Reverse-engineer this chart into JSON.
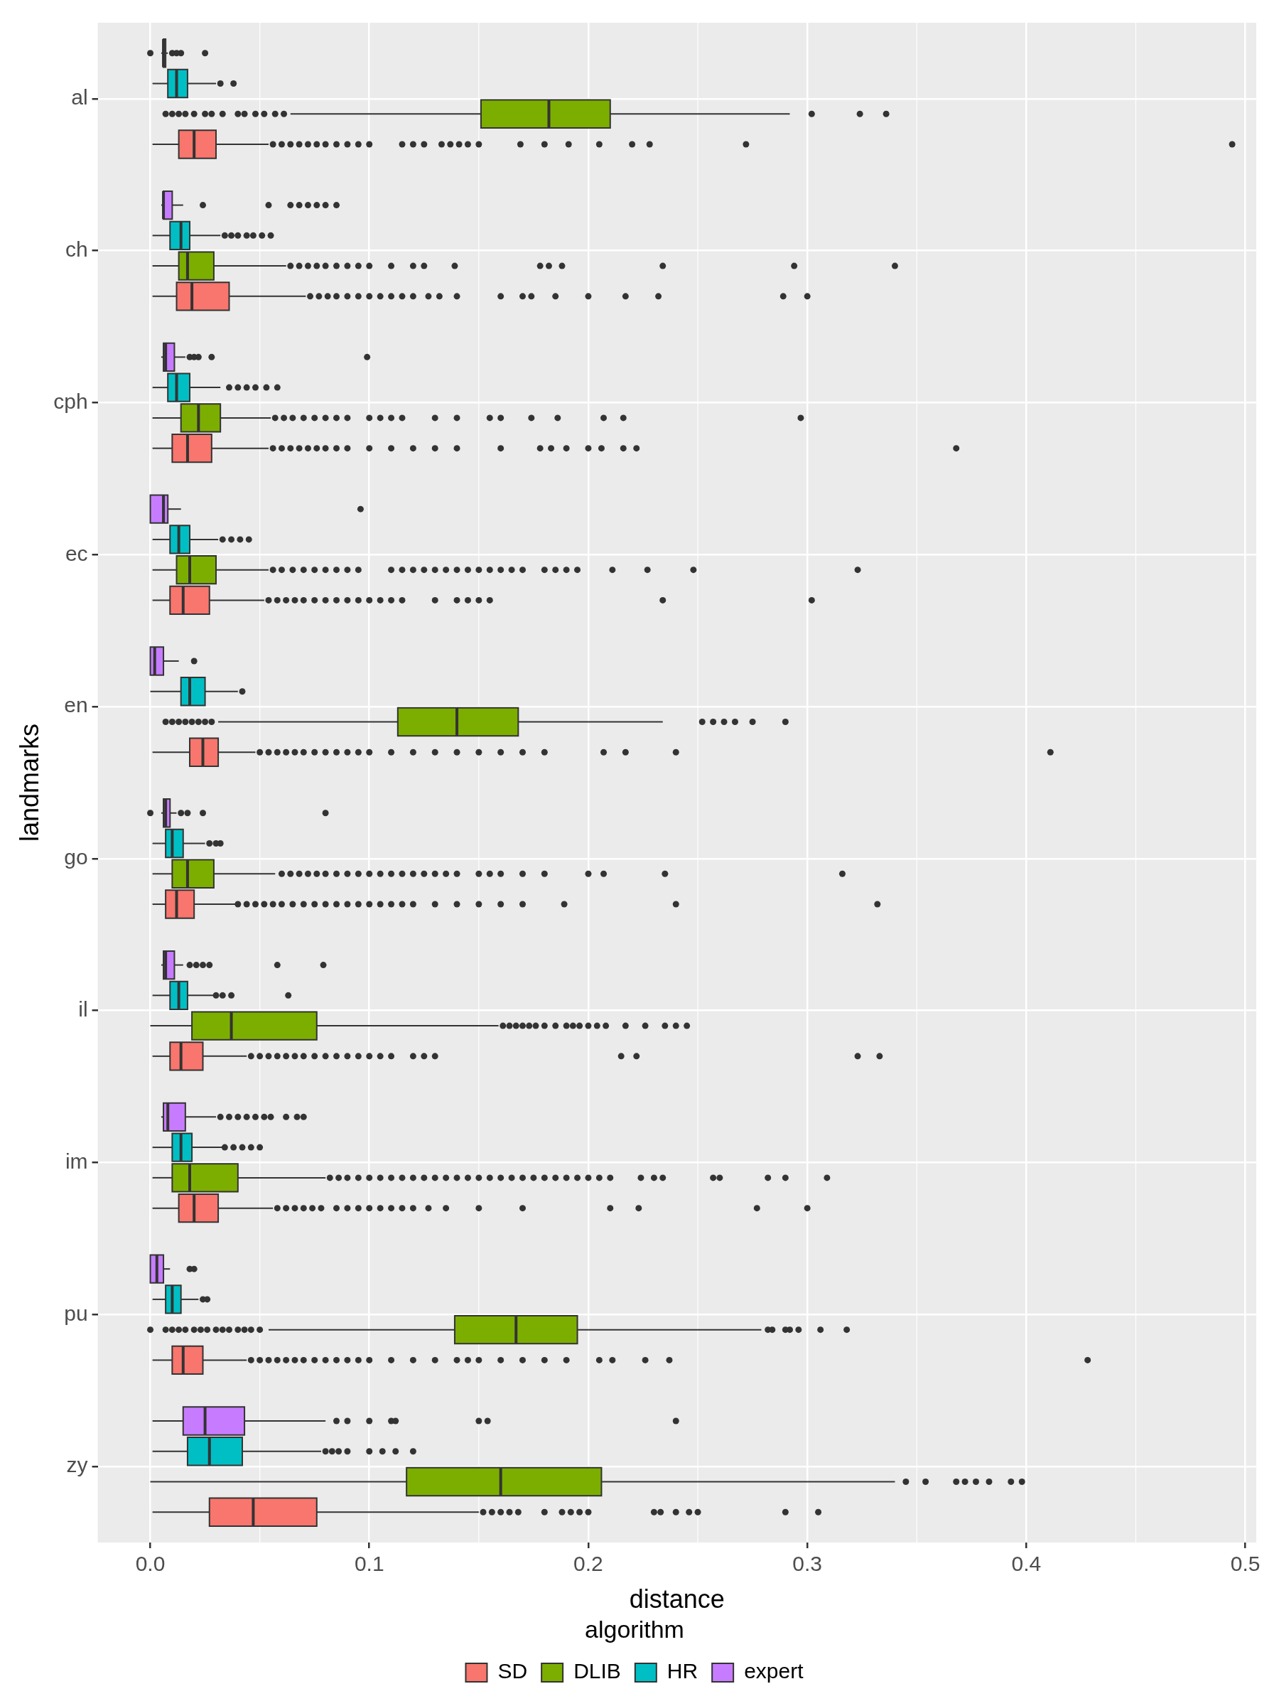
{
  "chart_data": {
    "type": "box",
    "orientation": "horizontal",
    "xlabel": "distance",
    "ylabel": "landmarks",
    "legend_title": "algorithm",
    "legend": "bottom",
    "grid": true,
    "categories": [
      "al",
      "ch",
      "cph",
      "ec",
      "en",
      "go",
      "il",
      "im",
      "pu",
      "zy"
    ],
    "xlim": [
      -0.024,
      0.505
    ],
    "xticks": [
      {
        "value": 0,
        "label": "0.0"
      },
      0.1,
      0.2,
      0.3,
      0.4,
      0.5
    ],
    "series": [
      {
        "name": "SD",
        "color": "#f8766d",
        "boxes": [
          {
            "low": 0.001,
            "q1": 0.013,
            "median": 0.02,
            "q3": 0.03,
            "high": 0.054,
            "outliers": [
              0.056,
              0.06,
              0.064,
              0.068,
              0.072,
              0.076,
              0.08,
              0.085,
              0.09,
              0.095,
              0.1,
              0.115,
              0.12,
              0.125,
              0.133,
              0.137,
              0.141,
              0.145,
              0.15,
              0.169,
              0.18,
              0.191,
              0.205,
              0.22,
              0.228,
              0.272,
              0.494
            ]
          },
          {
            "low": 0.001,
            "q1": 0.012,
            "median": 0.019,
            "q3": 0.036,
            "high": 0.071,
            "outliers": [
              0.073,
              0.077,
              0.081,
              0.085,
              0.09,
              0.095,
              0.1,
              0.105,
              0.11,
              0.115,
              0.12,
              0.127,
              0.132,
              0.14,
              0.16,
              0.17,
              0.174,
              0.185,
              0.2,
              0.217,
              0.232,
              0.289,
              0.3
            ]
          },
          {
            "low": 0.001,
            "q1": 0.01,
            "median": 0.017,
            "q3": 0.028,
            "high": 0.054,
            "outliers": [
              0.056,
              0.06,
              0.064,
              0.068,
              0.072,
              0.076,
              0.08,
              0.085,
              0.09,
              0.1,
              0.11,
              0.12,
              0.13,
              0.14,
              0.16,
              0.178,
              0.183,
              0.19,
              0.2,
              0.206,
              0.216,
              0.222,
              0.368
            ]
          },
          {
            "low": 0.001,
            "q1": 0.009,
            "median": 0.015,
            "q3": 0.027,
            "high": 0.052,
            "outliers": [
              0.054,
              0.058,
              0.062,
              0.066,
              0.07,
              0.075,
              0.08,
              0.085,
              0.09,
              0.095,
              0.1,
              0.105,
              0.11,
              0.115,
              0.13,
              0.14,
              0.145,
              0.15,
              0.155,
              0.234,
              0.302
            ]
          },
          {
            "low": 0.001,
            "q1": 0.018,
            "median": 0.024,
            "q3": 0.031,
            "high": 0.048,
            "outliers": [
              0.05,
              0.054,
              0.058,
              0.062,
              0.066,
              0.07,
              0.075,
              0.08,
              0.085,
              0.09,
              0.095,
              0.1,
              0.11,
              0.12,
              0.13,
              0.14,
              0.15,
              0.16,
              0.17,
              0.18,
              0.207,
              0.217,
              0.24,
              0.411
            ]
          },
          {
            "low": 0.001,
            "q1": 0.007,
            "median": 0.012,
            "q3": 0.02,
            "high": 0.039,
            "outliers": [
              0.04,
              0.044,
              0.048,
              0.052,
              0.056,
              0.06,
              0.065,
              0.07,
              0.075,
              0.08,
              0.085,
              0.09,
              0.095,
              0.1,
              0.105,
              0.11,
              0.115,
              0.12,
              0.13,
              0.14,
              0.15,
              0.16,
              0.17,
              0.189,
              0.24,
              0.332
            ]
          },
          {
            "low": 0.001,
            "q1": 0.009,
            "median": 0.014,
            "q3": 0.024,
            "high": 0.044,
            "outliers": [
              0.046,
              0.05,
              0.054,
              0.058,
              0.062,
              0.066,
              0.07,
              0.075,
              0.08,
              0.085,
              0.09,
              0.095,
              0.1,
              0.105,
              0.11,
              0.12,
              0.125,
              0.13,
              0.215,
              0.222,
              0.323,
              0.333
            ]
          },
          {
            "low": 0.001,
            "q1": 0.013,
            "median": 0.02,
            "q3": 0.031,
            "high": 0.056,
            "outliers": [
              0.058,
              0.062,
              0.066,
              0.07,
              0.074,
              0.078,
              0.085,
              0.09,
              0.095,
              0.1,
              0.105,
              0.11,
              0.115,
              0.12,
              0.127,
              0.135,
              0.15,
              0.17,
              0.21,
              0.223,
              0.277,
              0.3
            ]
          },
          {
            "low": 0.001,
            "q1": 0.01,
            "median": 0.015,
            "q3": 0.024,
            "high": 0.044,
            "outliers": [
              0.046,
              0.05,
              0.054,
              0.058,
              0.062,
              0.066,
              0.07,
              0.075,
              0.08,
              0.085,
              0.09,
              0.095,
              0.1,
              0.11,
              0.12,
              0.13,
              0.14,
              0.145,
              0.15,
              0.16,
              0.17,
              0.18,
              0.19,
              0.205,
              0.211,
              0.226,
              0.237,
              0.428
            ]
          },
          {
            "low": 0.001,
            "q1": 0.027,
            "median": 0.047,
            "q3": 0.076,
            "high": 0.15,
            "outliers": [
              0.152,
              0.156,
              0.16,
              0.164,
              0.168,
              0.18,
              0.188,
              0.192,
              0.196,
              0.2,
              0.23,
              0.233,
              0.24,
              0.246,
              0.25,
              0.29,
              0.305
            ]
          }
        ]
      },
      {
        "name": "DLIB",
        "color": "#7cae00",
        "boxes": [
          {
            "low": 0.064,
            "q1": 0.151,
            "median": 0.182,
            "q3": 0.21,
            "high": 0.292,
            "outliers": [
              0.007,
              0.01,
              0.013,
              0.016,
              0.02,
              0.025,
              0.028,
              0.033,
              0.04,
              0.043,
              0.048,
              0.052,
              0.057,
              0.061,
              0.302,
              0.324,
              0.336
            ]
          },
          {
            "low": 0.001,
            "q1": 0.013,
            "median": 0.017,
            "q3": 0.029,
            "high": 0.062,
            "outliers": [
              0.064,
              0.068,
              0.072,
              0.076,
              0.08,
              0.085,
              0.09,
              0.095,
              0.1,
              0.11,
              0.12,
              0.125,
              0.139,
              0.178,
              0.182,
              0.188,
              0.234,
              0.294,
              0.34
            ]
          },
          {
            "low": 0.001,
            "q1": 0.014,
            "median": 0.022,
            "q3": 0.032,
            "high": 0.055,
            "outliers": [
              0.057,
              0.061,
              0.065,
              0.07,
              0.075,
              0.08,
              0.085,
              0.09,
              0.1,
              0.105,
              0.11,
              0.115,
              0.13,
              0.14,
              0.155,
              0.16,
              0.174,
              0.186,
              0.207,
              0.216,
              0.297
            ]
          },
          {
            "low": 0.001,
            "q1": 0.012,
            "median": 0.018,
            "q3": 0.03,
            "high": 0.054,
            "outliers": [
              0.056,
              0.06,
              0.065,
              0.07,
              0.075,
              0.08,
              0.085,
              0.09,
              0.095,
              0.11,
              0.115,
              0.12,
              0.125,
              0.13,
              0.135,
              0.14,
              0.145,
              0.15,
              0.155,
              0.16,
              0.165,
              0.17,
              0.18,
              0.185,
              0.19,
              0.195,
              0.211,
              0.227,
              0.248,
              0.323
            ]
          },
          {
            "low": 0.031,
            "q1": 0.113,
            "median": 0.14,
            "q3": 0.168,
            "high": 0.234,
            "outliers": [
              0.007,
              0.01,
              0.013,
              0.016,
              0.019,
              0.022,
              0.025,
              0.028,
              0.252,
              0.257,
              0.262,
              0.267,
              0.275,
              0.29
            ]
          },
          {
            "low": 0.001,
            "q1": 0.01,
            "median": 0.017,
            "q3": 0.029,
            "high": 0.057,
            "outliers": [
              0.06,
              0.064,
              0.068,
              0.072,
              0.076,
              0.08,
              0.085,
              0.09,
              0.095,
              0.1,
              0.105,
              0.11,
              0.115,
              0.12,
              0.125,
              0.13,
              0.135,
              0.14,
              0.15,
              0.155,
              0.16,
              0.17,
              0.18,
              0.2,
              0.207,
              0.235,
              0.316
            ]
          },
          {
            "low": 0.0,
            "q1": 0.019,
            "median": 0.037,
            "q3": 0.076,
            "high": 0.159,
            "outliers": [
              0.161,
              0.164,
              0.167,
              0.17,
              0.173,
              0.176,
              0.18,
              0.185,
              0.19,
              0.193,
              0.196,
              0.2,
              0.204,
              0.208,
              0.217,
              0.226,
              0.235,
              0.24,
              0.245
            ]
          },
          {
            "low": 0.001,
            "q1": 0.01,
            "median": 0.018,
            "q3": 0.04,
            "high": 0.08,
            "outliers": [
              0.082,
              0.086,
              0.09,
              0.095,
              0.1,
              0.105,
              0.11,
              0.115,
              0.12,
              0.125,
              0.13,
              0.135,
              0.14,
              0.145,
              0.15,
              0.155,
              0.16,
              0.165,
              0.17,
              0.175,
              0.18,
              0.185,
              0.19,
              0.195,
              0.2,
              0.205,
              0.21,
              0.224,
              0.23,
              0.234,
              0.257,
              0.26,
              0.282,
              0.29,
              0.309
            ]
          },
          {
            "low": 0.054,
            "q1": 0.139,
            "median": 0.167,
            "q3": 0.195,
            "high": 0.279,
            "outliers": [
              0.0,
              0.007,
              0.01,
              0.013,
              0.016,
              0.02,
              0.023,
              0.026,
              0.03,
              0.033,
              0.036,
              0.04,
              0.043,
              0.046,
              0.05,
              0.282,
              0.284,
              0.29,
              0.292,
              0.296,
              0.306,
              0.318
            ]
          },
          {
            "low": 0.0,
            "q1": 0.117,
            "median": 0.16,
            "q3": 0.206,
            "high": 0.34,
            "outliers": [
              0.345,
              0.354,
              0.368,
              0.372,
              0.377,
              0.383,
              0.393,
              0.398
            ]
          }
        ]
      },
      {
        "name": "HR",
        "color": "#00bfc4",
        "boxes": [
          {
            "low": 0.001,
            "q1": 0.008,
            "median": 0.012,
            "q3": 0.017,
            "high": 0.03,
            "outliers": [
              0.032,
              0.038
            ]
          },
          {
            "low": 0.001,
            "q1": 0.009,
            "median": 0.014,
            "q3": 0.018,
            "high": 0.032,
            "outliers": [
              0.034,
              0.037,
              0.04,
              0.044,
              0.047,
              0.051,
              0.055
            ]
          },
          {
            "low": 0.001,
            "q1": 0.008,
            "median": 0.012,
            "q3": 0.018,
            "high": 0.032,
            "outliers": [
              0.036,
              0.04,
              0.044,
              0.048,
              0.053,
              0.058
            ]
          },
          {
            "low": 0.001,
            "q1": 0.009,
            "median": 0.013,
            "q3": 0.018,
            "high": 0.031,
            "outliers": [
              0.033,
              0.037,
              0.041,
              0.045
            ]
          },
          {
            "low": 0.0,
            "q1": 0.014,
            "median": 0.018,
            "q3": 0.025,
            "high": 0.04,
            "outliers": [
              0.042
            ]
          },
          {
            "low": 0.001,
            "q1": 0.007,
            "median": 0.01,
            "q3": 0.015,
            "high": 0.025,
            "outliers": [
              0.027,
              0.03,
              0.032
            ]
          },
          {
            "low": 0.001,
            "q1": 0.009,
            "median": 0.013,
            "q3": 0.017,
            "high": 0.029,
            "outliers": [
              0.03,
              0.033,
              0.037,
              0.063
            ]
          },
          {
            "low": 0.001,
            "q1": 0.01,
            "median": 0.014,
            "q3": 0.019,
            "high": 0.033,
            "outliers": [
              0.034,
              0.038,
              0.042,
              0.046,
              0.05
            ]
          },
          {
            "low": 0.001,
            "q1": 0.007,
            "median": 0.01,
            "q3": 0.014,
            "high": 0.022,
            "outliers": [
              0.024,
              0.026
            ]
          },
          {
            "low": 0.001,
            "q1": 0.017,
            "median": 0.027,
            "q3": 0.042,
            "high": 0.078,
            "outliers": [
              0.08,
              0.083,
              0.086,
              0.09,
              0.1,
              0.106,
              0.112,
              0.12
            ]
          }
        ]
      },
      {
        "name": "expert",
        "color": "#c77cff",
        "boxes": [
          {
            "low": 0.005,
            "q1": 0.006,
            "median": 0.006,
            "q3": 0.007,
            "high": 0.008,
            "outliers": [
              0.0,
              0.01,
              0.012,
              0.014,
              0.025
            ]
          },
          {
            "low": 0.005,
            "q1": 0.006,
            "median": 0.006,
            "q3": 0.01,
            "high": 0.015,
            "outliers": [
              0.024,
              0.054,
              0.064,
              0.068,
              0.072,
              0.076,
              0.08,
              0.085
            ]
          },
          {
            "low": 0.005,
            "q1": 0.006,
            "median": 0.007,
            "q3": 0.011,
            "high": 0.016,
            "outliers": [
              0.018,
              0.02,
              0.022,
              0.028,
              0.099
            ]
          },
          {
            "low": 0.0,
            "q1": 0.0,
            "median": 0.006,
            "q3": 0.008,
            "high": 0.014,
            "outliers": [
              0.096
            ]
          },
          {
            "low": 0.0,
            "q1": 0.0,
            "median": 0.002,
            "q3": 0.006,
            "high": 0.013,
            "outliers": [
              0.02
            ]
          },
          {
            "low": 0.005,
            "q1": 0.006,
            "median": 0.007,
            "q3": 0.009,
            "high": 0.012,
            "outliers": [
              0.0,
              0.014,
              0.017,
              0.024,
              0.08
            ]
          },
          {
            "low": 0.005,
            "q1": 0.006,
            "median": 0.007,
            "q3": 0.011,
            "high": 0.015,
            "outliers": [
              0.018,
              0.021,
              0.024,
              0.027,
              0.058,
              0.079
            ]
          },
          {
            "low": 0.005,
            "q1": 0.006,
            "median": 0.008,
            "q3": 0.016,
            "high": 0.03,
            "outliers": [
              0.032,
              0.036,
              0.04,
              0.044,
              0.048,
              0.052,
              0.055,
              0.062,
              0.067,
              0.07
            ]
          },
          {
            "low": 0.0,
            "q1": 0.0,
            "median": 0.003,
            "q3": 0.006,
            "high": 0.009,
            "outliers": [
              0.018,
              0.02
            ]
          },
          {
            "low": 0.001,
            "q1": 0.015,
            "median": 0.025,
            "q3": 0.043,
            "high": 0.08,
            "outliers": [
              0.085,
              0.09,
              0.1,
              0.11,
              0.112,
              0.15,
              0.154,
              0.24
            ]
          }
        ]
      }
    ]
  }
}
